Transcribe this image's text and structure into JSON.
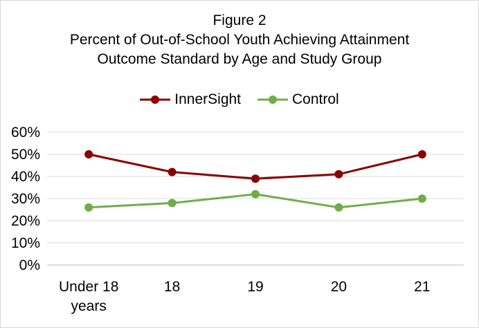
{
  "chart_data": {
    "type": "line",
    "title_lines": [
      "Figure 2",
      "Percent of Out-of-School Youth Achieving Attainment",
      "Outcome Standard by Age and Study Group"
    ],
    "categories": [
      [
        "Under 18",
        "years"
      ],
      [
        "18"
      ],
      [
        "19"
      ],
      [
        "20"
      ],
      [
        "21"
      ]
    ],
    "series": [
      {
        "name": "InnerSight",
        "color": "#8B0000",
        "values": [
          50,
          42,
          39,
          41,
          50
        ]
      },
      {
        "name": "Control",
        "color": "#70AD47",
        "values": [
          26,
          28,
          32,
          26,
          30
        ]
      }
    ],
    "y_ticks": [
      "0%",
      "10%",
      "20%",
      "30%",
      "40%",
      "50%",
      "60%"
    ],
    "ylim": [
      0,
      60
    ],
    "grid": true,
    "legend_position": "top-center"
  }
}
